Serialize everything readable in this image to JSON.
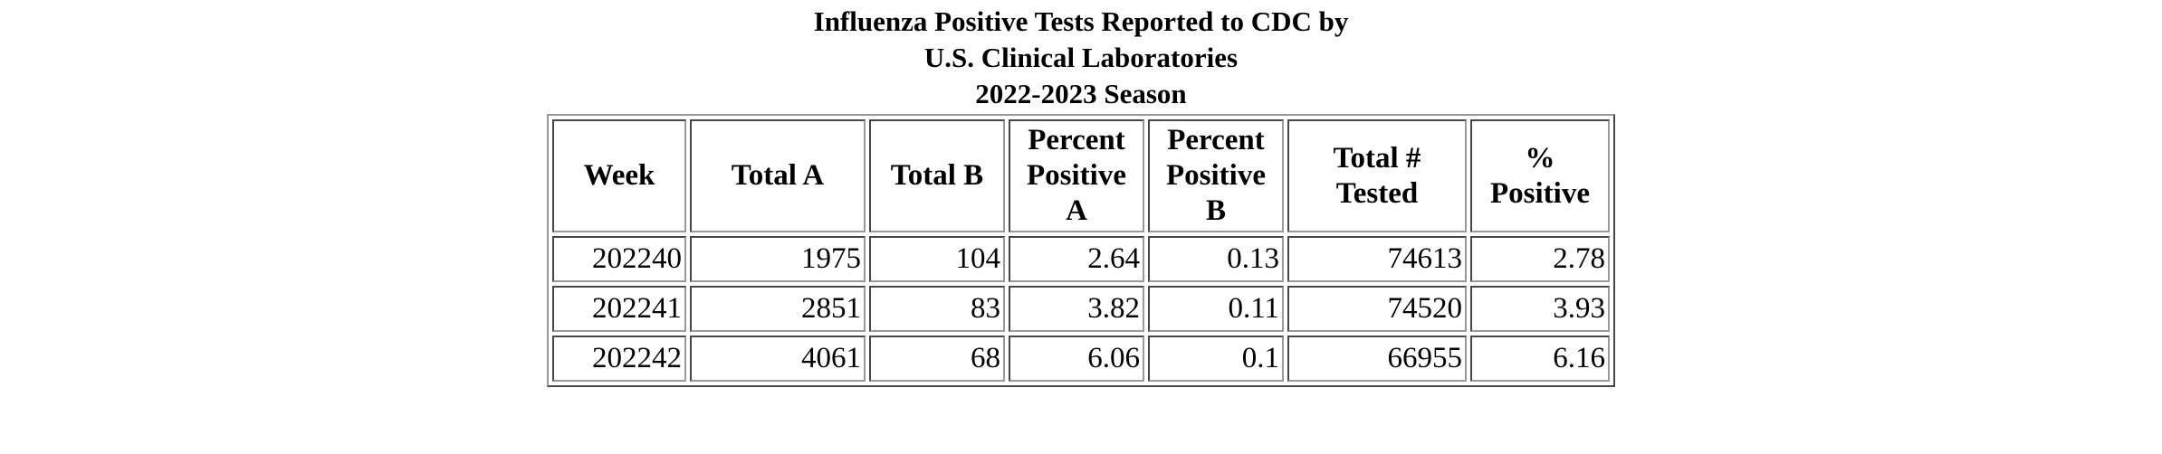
{
  "caption": {
    "line1": "Influenza Positive Tests Reported to CDC by",
    "line2": "U.S. Clinical Laboratories",
    "line3": "2022-2023 Season"
  },
  "table": {
    "headers": {
      "week": "Week",
      "total_a": "Total A",
      "total_b": "Total B",
      "pct_a_1": "Percent",
      "pct_a_2": "Positive A",
      "pct_b_1": "Percent",
      "pct_b_2": "Positive B",
      "total_tested": "Total # Tested",
      "pct_positive": "% Positive"
    },
    "rows": [
      {
        "week": "202240",
        "total_a": "1975",
        "total_b": "104",
        "pct_a": "2.64",
        "pct_b": "0.13",
        "total_tested": "74613",
        "pct_positive": "2.78"
      },
      {
        "week": "202241",
        "total_a": "2851",
        "total_b": "83",
        "pct_a": "3.82",
        "pct_b": "0.11",
        "total_tested": "74520",
        "pct_positive": "3.93"
      },
      {
        "week": "202242",
        "total_a": "4061",
        "total_b": "68",
        "pct_a": "6.06",
        "pct_b": "0.1",
        "total_tested": "66955",
        "pct_positive": "6.16"
      }
    ]
  }
}
